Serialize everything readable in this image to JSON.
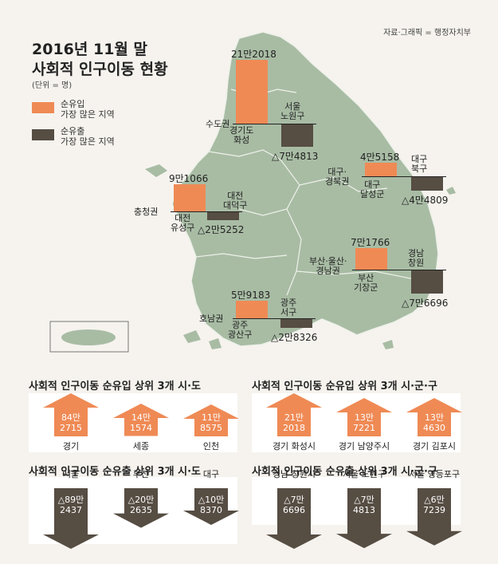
{
  "source": "자료·그래픽 = 행정자치부",
  "title_line1": "2016년 11월 말",
  "title_line2": "사회적 인구이동 현황",
  "unit": "(단위 = 명)",
  "legend": {
    "in": "순유입\n가장 많은 지역",
    "out": "순유출\n가장 많은 지역"
  },
  "colors": {
    "in": "#ef8a55",
    "out": "#564d43",
    "land": "#a8bca4",
    "bg": "#f6f3ee"
  },
  "chart_data": [
    {
      "type": "bar",
      "name": "map",
      "regions": [
        {
          "region": "수도권",
          "in_area": "경기도\n화성",
          "in_value": 212018,
          "in_label": "21만2018",
          "out_area": "서울\n노원구",
          "out_value": -74813,
          "out_label": "△7만4813"
        },
        {
          "region": "충청권",
          "in_area": "대전\n유성구",
          "in_value": 91066,
          "in_label": "9만1066",
          "out_area": "대전\n대덕구",
          "out_value": -25252,
          "out_label": "△2만5252"
        },
        {
          "region": "대구·\n경북권",
          "in_area": "대구\n달성군",
          "in_value": 45158,
          "in_label": "4만5158",
          "out_area": "대구\n북구",
          "out_value": -44809,
          "out_label": "△4만4809"
        },
        {
          "region": "부산·울산·\n경남권",
          "in_area": "부산\n기장군",
          "in_value": 71766,
          "in_label": "7만1766",
          "out_area": "경남\n창원",
          "out_value": -76696,
          "out_label": "△7만6696"
        },
        {
          "region": "호남권",
          "in_area": "광주\n광산구",
          "in_value": 59183,
          "in_label": "5만9183",
          "out_area": "광주\n서구",
          "out_value": -28326,
          "out_label": "△2만8326"
        }
      ]
    },
    {
      "type": "bar",
      "title": "사회적 인구이동 순유입 상위 3개 시·도",
      "categories": [
        "경기",
        "세종",
        "인천"
      ],
      "values": [
        842715,
        141574,
        118575
      ],
      "labels": [
        "84만\n2715",
        "14만\n1574",
        "11만\n8575"
      ]
    },
    {
      "type": "bar",
      "title": "사회적 인구이동 순유출 상위 3개 시·도",
      "categories": [
        "서울",
        "부산",
        "대구"
      ],
      "values": [
        -892437,
        -202635,
        -108370
      ],
      "labels": [
        "△89만\n2437",
        "△20만\n2635",
        "△10만\n8370"
      ]
    },
    {
      "type": "bar",
      "title": "사회적 인구이동 순유입 상위 3개 시·군·구",
      "categories": [
        "경기 화성시",
        "경기 남양주시",
        "경기 김포시"
      ],
      "values": [
        212018,
        137221,
        134630
      ],
      "labels": [
        "21만\n2018",
        "13만\n7221",
        "13만\n4630"
      ]
    },
    {
      "type": "bar",
      "title": "사회적 인구이동 순유출 상위 3개 시·군·구",
      "categories": [
        "경남 창원시",
        "서울 노원구",
        "서울 영등포구"
      ],
      "values": [
        -76696,
        -74813,
        -67239
      ],
      "labels": [
        "△7만\n6696",
        "△7만\n4813",
        "△6만\n7239"
      ]
    }
  ]
}
